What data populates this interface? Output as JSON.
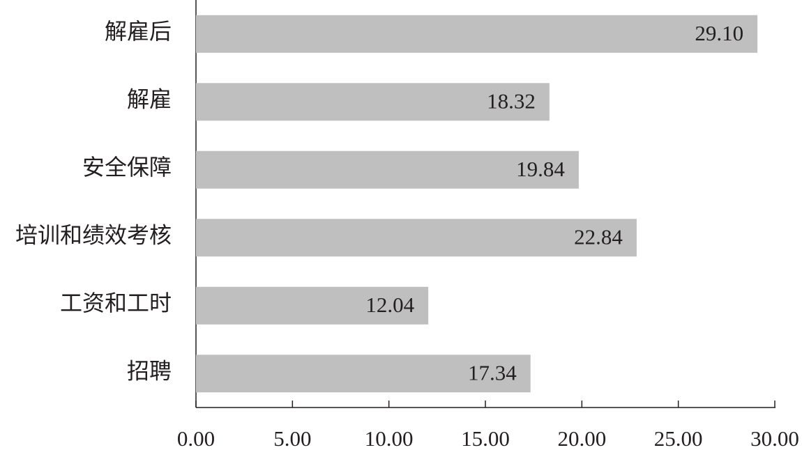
{
  "chart_data": {
    "type": "bar",
    "orientation": "horizontal",
    "categories": [
      "解雇后",
      "解雇",
      "安全保障",
      "培训和绩效考核",
      "工资和工时",
      "招聘"
    ],
    "values": [
      29.1,
      18.32,
      19.84,
      22.84,
      12.04,
      17.34
    ],
    "value_labels": [
      "29.10",
      "18.32",
      "19.84",
      "22.84",
      "12.04",
      "17.34"
    ],
    "color": "#bfbfbf",
    "xlim": [
      0,
      30
    ],
    "xticks": [
      {
        "value": 0,
        "label": "0.00"
      },
      {
        "value": 5,
        "label": "5.00"
      },
      {
        "value": 10,
        "label": "10.00"
      },
      {
        "value": 15,
        "label": "15.00"
      },
      {
        "value": 20,
        "label": "20.00"
      },
      {
        "value": 25,
        "label": "25.00"
      },
      {
        "value": 30,
        "label": "30.00"
      }
    ],
    "grid": false
  }
}
